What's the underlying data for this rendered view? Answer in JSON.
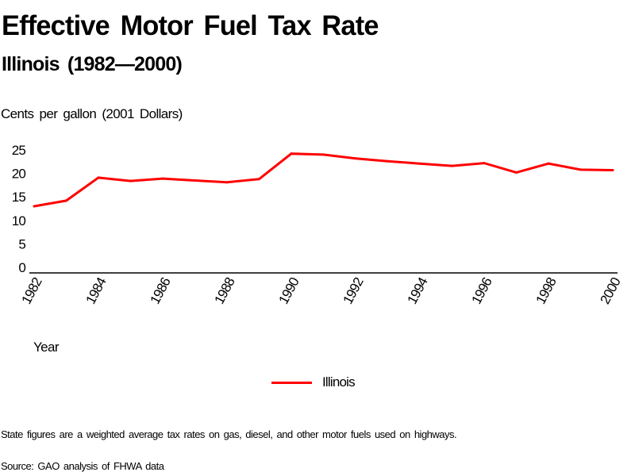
{
  "chart_data": {
    "type": "line",
    "title": "Effective Motor Fuel Tax Rate",
    "subtitle": "Illinois (1982—2000)",
    "ylabel": "Cents per gallon (2001 Dollars)",
    "xlabel": "Year",
    "ylim": [
      0,
      25
    ],
    "yticks": [
      "0",
      "5",
      "10",
      "15",
      "20",
      "25"
    ],
    "xlim": [
      1982,
      2000
    ],
    "xticks": [
      "1982",
      "1984",
      "1986",
      "1988",
      "1990",
      "1992",
      "1994",
      "1996",
      "1998",
      "2000"
    ],
    "grid": false,
    "legend_position": "bottom-center",
    "x": [
      1982,
      1983,
      1984,
      1985,
      1986,
      1987,
      1988,
      1989,
      1990,
      1991,
      1992,
      1993,
      1994,
      1995,
      1996,
      1997,
      1998,
      1999,
      2000
    ],
    "series": [
      {
        "name": "Illinois",
        "color": "#ff0000",
        "values": [
          13.0,
          14.2,
          19.1,
          18.4,
          18.9,
          18.5,
          18.1,
          18.8,
          24.2,
          24.0,
          23.2,
          22.6,
          22.1,
          21.6,
          22.2,
          20.2,
          22.1,
          20.8,
          20.7
        ]
      }
    ],
    "notes": [
      "State figures are a weighted average tax rates on gas, diesel, and other motor fuels used on highways.",
      "Source: GAO analysis of FHWA data"
    ]
  },
  "header": {
    "title": "Effective Motor Fuel Tax Rate",
    "subtitle": "Illinois (1982—2000)"
  },
  "axes": {
    "y_title": "Cents per gallon (2001 Dollars)",
    "x_title": "Year"
  },
  "legend": {
    "label": "Illinois"
  },
  "footer": {
    "note": "State figures are a weighted average tax rates on gas, diesel, and other motor fuels used on highways.",
    "source": "Source: GAO analysis of FHWA data"
  }
}
